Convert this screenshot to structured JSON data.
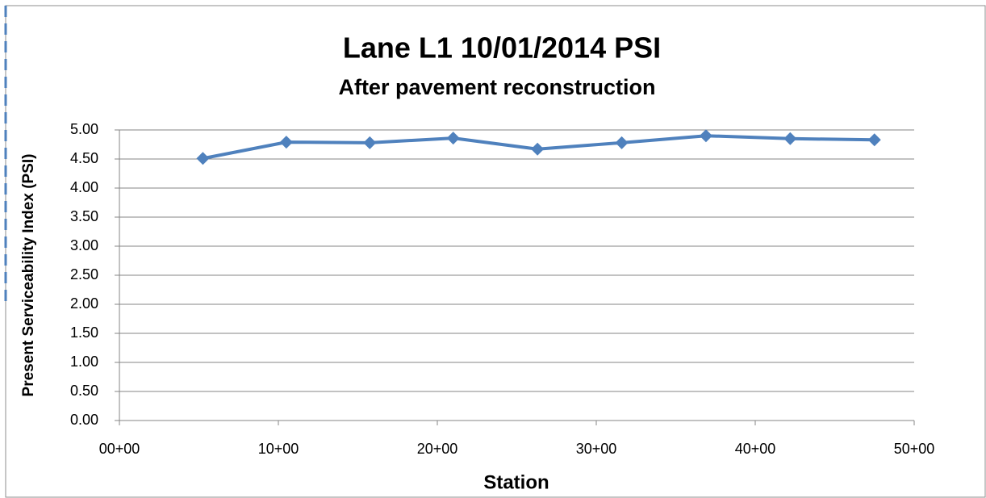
{
  "chart_data": {
    "type": "line",
    "title": "Lane L1 10/01/2014 PSI",
    "subtitle": "After pavement reconstruction",
    "x_label": "Station",
    "y_label": "Present Serviceability Index (PSI)",
    "x": [
      525,
      1050,
      1575,
      2100,
      2630,
      3160,
      3690,
      4220,
      4750
    ],
    "series": [
      {
        "name": "PSI",
        "color": "#4f81bd",
        "values": [
          4.51,
          4.79,
          4.78,
          4.86,
          4.67,
          4.78,
          4.9,
          4.85,
          4.83
        ]
      }
    ],
    "xlim": [
      0,
      5000
    ],
    "xticks": [
      {
        "value": 0,
        "label": "00+00"
      },
      {
        "value": 1000,
        "label": "10+00"
      },
      {
        "value": 2000,
        "label": "20+00"
      },
      {
        "value": 3000,
        "label": "30+00"
      },
      {
        "value": 4000,
        "label": "40+00"
      },
      {
        "value": 5000,
        "label": "50+00"
      }
    ],
    "ylim": [
      0,
      5
    ],
    "yticks": [
      {
        "value": 0,
        "label": "0.00"
      },
      {
        "value": 0.5,
        "label": "0.50"
      },
      {
        "value": 1,
        "label": "1.00"
      },
      {
        "value": 1.5,
        "label": "1.50"
      },
      {
        "value": 2,
        "label": "2.00"
      },
      {
        "value": 2.5,
        "label": "2.50"
      },
      {
        "value": 3,
        "label": "3.00"
      },
      {
        "value": 3.5,
        "label": "3.50"
      },
      {
        "value": 4,
        "label": "4.00"
      },
      {
        "value": 4.5,
        "label": "4.50"
      },
      {
        "value": 5,
        "label": "5.00"
      }
    ],
    "grid": true
  }
}
